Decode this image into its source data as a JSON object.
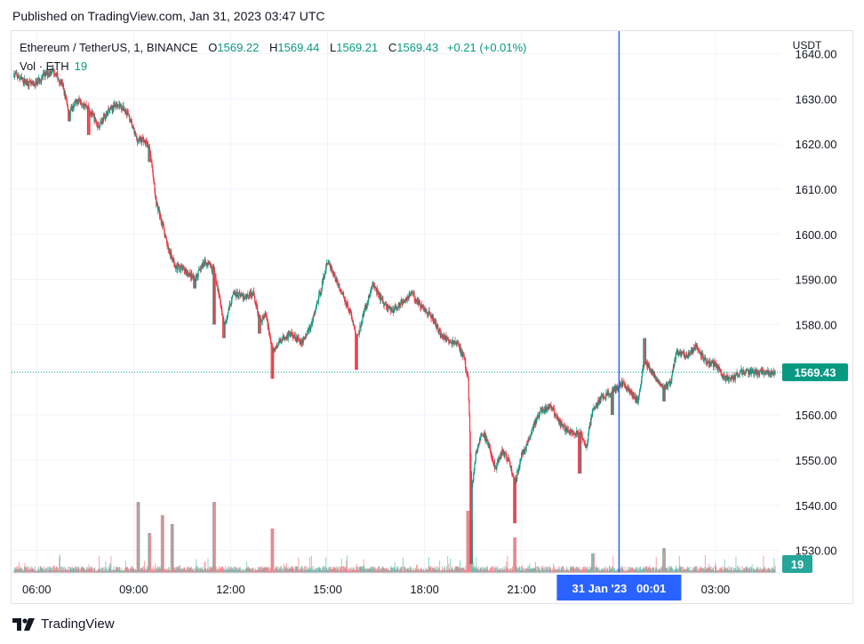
{
  "header": {
    "published": "Published on TradingView.com, Jan 31, 2023 03:47 UTC"
  },
  "legend": {
    "symbol": "Ethereum / TetherUS, 1, BINANCE",
    "open_label": "O",
    "open": "1569.22",
    "high_label": "H",
    "high": "1569.44",
    "low_label": "L",
    "low": "1569.21",
    "close_label": "C",
    "close": "1569.43",
    "change": "+0.21 (+0.01%)",
    "vol_label": "Vol · ETH",
    "vol_value": "19"
  },
  "footer": {
    "brand": "TradingView"
  },
  "colors": {
    "up": "#089981",
    "down": "#f23645",
    "crosshair": "#2962ff",
    "grid": "#f0f3fa",
    "text": "#131722"
  },
  "chart_data": {
    "type": "candlestick",
    "y_axis": {
      "unit": "USDT",
      "min": 1525,
      "max": 1645,
      "ticks": [
        1640,
        1630,
        1620,
        1610,
        1600,
        1590,
        1580,
        1570,
        1560,
        1550,
        1540,
        1530
      ],
      "tick_labels": [
        "1640.00",
        "1630.00",
        "1620.00",
        "1610.00",
        "1600.00",
        "1590.00",
        "1580.00",
        "1570.00",
        "1560.00",
        "1550.00",
        "1540.00",
        "1530.00"
      ]
    },
    "x_axis": {
      "start_hour": 5.25,
      "end_hour": 28.9,
      "ticks": [
        {
          "hour": 6,
          "label": "06:00"
        },
        {
          "hour": 9,
          "label": "09:00"
        },
        {
          "hour": 12,
          "label": "12:00"
        },
        {
          "hour": 15,
          "label": "15:00"
        },
        {
          "hour": 18,
          "label": "18:00"
        },
        {
          "hour": 21,
          "label": "21:00"
        },
        {
          "hour": 27,
          "label": "03:00"
        }
      ]
    },
    "crosshair": {
      "hour": 24.0167,
      "label": "31 Jan '23   00:01"
    },
    "last_price": {
      "value": 1569.43,
      "label": "1569.43"
    },
    "last_volume": {
      "value": 19,
      "label": "19"
    },
    "price_path": [
      [
        5.3,
        1635.5
      ],
      [
        5.6,
        1634
      ],
      [
        5.9,
        1633
      ],
      [
        6.2,
        1635
      ],
      [
        6.5,
        1636.5
      ],
      [
        6.8,
        1633
      ],
      [
        7.0,
        1627
      ],
      [
        7.3,
        1630
      ],
      [
        7.6,
        1628
      ],
      [
        7.9,
        1624
      ],
      [
        8.2,
        1627
      ],
      [
        8.5,
        1629
      ],
      [
        8.8,
        1627
      ],
      [
        9.1,
        1621
      ],
      [
        9.3,
        1621
      ],
      [
        9.5,
        1619
      ],
      [
        9.7,
        1607
      ],
      [
        9.9,
        1602
      ],
      [
        10.1,
        1596
      ],
      [
        10.3,
        1593
      ],
      [
        10.6,
        1592
      ],
      [
        10.9,
        1590
      ],
      [
        11.2,
        1594
      ],
      [
        11.5,
        1592
      ],
      [
        11.8,
        1580
      ],
      [
        12.1,
        1587
      ],
      [
        12.4,
        1586
      ],
      [
        12.7,
        1587
      ],
      [
        12.9,
        1581
      ],
      [
        13.1,
        1582
      ],
      [
        13.3,
        1574
      ],
      [
        13.6,
        1577
      ],
      [
        13.9,
        1578
      ],
      [
        14.2,
        1576
      ],
      [
        14.5,
        1580
      ],
      [
        14.8,
        1588
      ],
      [
        15.0,
        1594
      ],
      [
        15.2,
        1591
      ],
      [
        15.5,
        1586
      ],
      [
        15.7,
        1583
      ],
      [
        15.9,
        1577
      ],
      [
        16.1,
        1582
      ],
      [
        16.4,
        1589
      ],
      [
        16.7,
        1585
      ],
      [
        17.0,
        1583
      ],
      [
        17.3,
        1585
      ],
      [
        17.6,
        1587
      ],
      [
        17.9,
        1584
      ],
      [
        18.2,
        1582
      ],
      [
        18.5,
        1578
      ],
      [
        18.8,
        1576
      ],
      [
        19.0,
        1576
      ],
      [
        19.2,
        1573
      ],
      [
        19.35,
        1568
      ],
      [
        19.45,
        1543
      ],
      [
        19.6,
        1552
      ],
      [
        19.8,
        1556
      ],
      [
        20.0,
        1553
      ],
      [
        20.2,
        1548
      ],
      [
        20.4,
        1552
      ],
      [
        20.6,
        1550
      ],
      [
        20.8,
        1545
      ],
      [
        21.0,
        1551
      ],
      [
        21.2,
        1554
      ],
      [
        21.4,
        1558
      ],
      [
        21.6,
        1561
      ],
      [
        21.9,
        1562
      ],
      [
        22.2,
        1558
      ],
      [
        22.5,
        1556
      ],
      [
        22.8,
        1556
      ],
      [
        23.0,
        1553
      ],
      [
        23.2,
        1561
      ],
      [
        23.5,
        1564
      ],
      [
        23.8,
        1565
      ],
      [
        24.1,
        1567
      ],
      [
        24.4,
        1565
      ],
      [
        24.6,
        1563
      ],
      [
        24.8,
        1572
      ],
      [
        25.0,
        1570
      ],
      [
        25.2,
        1568
      ],
      [
        25.4,
        1566
      ],
      [
        25.6,
        1567
      ],
      [
        25.8,
        1574
      ],
      [
        26.1,
        1573
      ],
      [
        26.4,
        1575
      ],
      [
        26.7,
        1572
      ],
      [
        27.0,
        1571
      ],
      [
        27.3,
        1568
      ],
      [
        27.6,
        1568.5
      ],
      [
        27.8,
        1569.4
      ]
    ],
    "price_spikes": [
      [
        7.0,
        1625
      ],
      [
        7.6,
        1622
      ],
      [
        9.5,
        1616
      ],
      [
        10.9,
        1588
      ],
      [
        11.5,
        1580
      ],
      [
        11.8,
        1577
      ],
      [
        12.9,
        1578
      ],
      [
        13.3,
        1568
      ],
      [
        15.9,
        1570
      ],
      [
        19.45,
        1527
      ],
      [
        20.8,
        1536
      ],
      [
        22.8,
        1547
      ],
      [
        23.8,
        1560
      ],
      [
        25.4,
        1563
      ],
      [
        24.8,
        1577
      ]
    ],
    "volume_spikes": [
      [
        9.15,
        80
      ],
      [
        9.5,
        45
      ],
      [
        9.9,
        65
      ],
      [
        10.2,
        55
      ],
      [
        11.5,
        80
      ],
      [
        13.3,
        50
      ],
      [
        19.35,
        70
      ],
      [
        19.45,
        60
      ],
      [
        20.8,
        40
      ],
      [
        23.2,
        22
      ],
      [
        25.4,
        28
      ]
    ]
  }
}
